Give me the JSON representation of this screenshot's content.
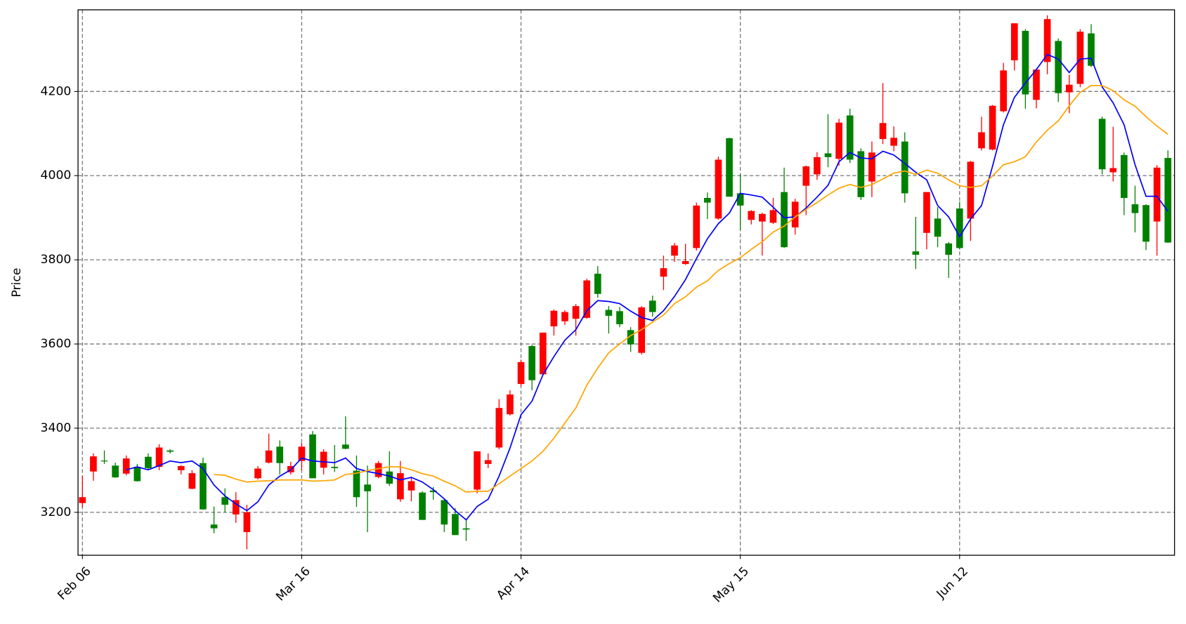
{
  "chart_data": {
    "type": "candlestick",
    "ylabel": "Price",
    "categories": [
      "Feb 06",
      null,
      null,
      null,
      null,
      null,
      null,
      null,
      null,
      null,
      null,
      null,
      null,
      null,
      null,
      null,
      null,
      null,
      null,
      null,
      "Mar 16",
      null,
      null,
      null,
      null,
      null,
      null,
      null,
      null,
      null,
      null,
      null,
      null,
      null,
      null,
      null,
      null,
      null,
      null,
      null,
      "Apr 14",
      null,
      null,
      null,
      null,
      null,
      null,
      null,
      null,
      null,
      null,
      null,
      null,
      null,
      null,
      null,
      null,
      null,
      null,
      null,
      "May 15",
      null,
      null,
      null,
      null,
      null,
      null,
      null,
      null,
      null,
      null,
      null,
      null,
      null,
      null,
      null,
      null,
      null,
      null,
      null,
      "Jun 12",
      null,
      null,
      null,
      null,
      null,
      null,
      null,
      null,
      null,
      null,
      null,
      null,
      null,
      null,
      null,
      null,
      null,
      null,
      null
    ],
    "open": [
      3222,
      3297,
      3323,
      3311,
      3292,
      3308,
      3332,
      3308,
      3347,
      3300,
      3256,
      3317,
      3171,
      3236,
      3195,
      3153,
      3281,
      3318,
      3356,
      3295,
      3322,
      3385,
      3306,
      3308,
      3361,
      3299,
      3266,
      3284,
      3297,
      3231,
      3252,
      3247,
      3252,
      3229,
      3196,
      3162,
      3254,
      3315,
      3354,
      3433,
      3505,
      3595,
      3528,
      3642,
      3654,
      3660,
      3662,
      3767,
      3681,
      3678,
      3633,
      3579,
      3703,
      3760,
      3810,
      3790,
      3828,
      3947,
      3898,
      4089,
      3958,
      3895,
      3891,
      3888,
      3961,
      3877,
      3976,
      4003,
      4053,
      4040,
      4143,
      4058,
      3986,
      4087,
      4071,
      4081,
      3820,
      3864,
      3898,
      3839,
      3922,
      3898,
      4065,
      4062,
      4153,
      4274,
      4344,
      4180,
      4270,
      4320,
      4198,
      4218,
      4338,
      4135,
      4008,
      4049,
      3932,
      3930,
      3891,
      4042
    ],
    "high": [
      3286,
      3340,
      3347,
      3318,
      3335,
      3315,
      3340,
      3362,
      3350,
      3312,
      3300,
      3330,
      3214,
      3257,
      3248,
      3218,
      3310,
      3387,
      3371,
      3320,
      3365,
      3393,
      3350,
      3360,
      3428,
      3335,
      3311,
      3322,
      3345,
      3322,
      3285,
      3250,
      3260,
      3232,
      3210,
      3182,
      3345,
      3340,
      3469,
      3490,
      3563,
      3598,
      3627,
      3682,
      3680,
      3695,
      3755,
      3785,
      3690,
      3688,
      3640,
      3690,
      3715,
      3810,
      3840,
      3838,
      3936,
      3960,
      4045,
      4090,
      4003,
      3918,
      3912,
      3947,
      4019,
      3945,
      4024,
      4056,
      4146,
      4135,
      4159,
      4065,
      4081,
      4220,
      4117,
      4103,
      3902,
      3961,
      3925,
      3842,
      3938,
      4035,
      4140,
      4168,
      4268,
      4362,
      4348,
      4255,
      4381,
      4326,
      4240,
      4348,
      4360,
      4140,
      4116,
      4055,
      3976,
      3932,
      4025,
      4060
    ],
    "low": [
      3212,
      3275,
      3315,
      3282,
      3288,
      3273,
      3300,
      3300,
      3340,
      3290,
      3255,
      3206,
      3150,
      3200,
      3175,
      3112,
      3278,
      3316,
      3290,
      3290,
      3300,
      3281,
      3290,
      3296,
      3350,
      3213,
      3153,
      3281,
      3263,
      3225,
      3226,
      3182,
      3230,
      3153,
      3146,
      3132,
      3245,
      3305,
      3350,
      3430,
      3500,
      3490,
      3525,
      3620,
      3645,
      3620,
      3660,
      3710,
      3625,
      3640,
      3581,
      3575,
      3665,
      3728,
      3795,
      3788,
      3822,
      3897,
      3895,
      3950,
      3871,
      3884,
      3810,
      3885,
      3828,
      3860,
      3906,
      3990,
      4020,
      4024,
      4030,
      3942,
      3949,
      4075,
      4058,
      3936,
      3778,
      3825,
      3830,
      3757,
      3825,
      3845,
      4060,
      4060,
      4150,
      4250,
      4159,
      4160,
      4241,
      4175,
      4148,
      4210,
      4258,
      4003,
      3986,
      3906,
      3865,
      3823,
      3810,
      3840
    ],
    "close": [
      3236,
      3333,
      3321,
      3283,
      3328,
      3274,
      3305,
      3354,
      3344,
      3310,
      3293,
      3207,
      3162,
      3218,
      3229,
      3200,
      3304,
      3347,
      3317,
      3310,
      3356,
      3281,
      3344,
      3305,
      3351,
      3236,
      3250,
      3317,
      3268,
      3293,
      3274,
      3182,
      3248,
      3171,
      3146,
      3159,
      3345,
      3324,
      3448,
      3480,
      3557,
      3514,
      3627,
      3679,
      3676,
      3690,
      3751,
      3719,
      3667,
      3647,
      3599,
      3687,
      3676,
      3780,
      3834,
      3797,
      3929,
      3936,
      4038,
      3950,
      3929,
      3916,
      3909,
      3918,
      3830,
      3938,
      4022,
      4044,
      4044,
      4126,
      4038,
      3949,
      4055,
      4125,
      4090,
      3958,
      3812,
      3961,
      3855,
      3812,
      3828,
      4033,
      4103,
      4166,
      4250,
      4362,
      4193,
      4252,
      4372,
      4196,
      4216,
      4342,
      4261,
      4015,
      4018,
      3947,
      3911,
      3843,
      4019,
      3841
    ],
    "up_color": "red",
    "down_color": "green",
    "series": [
      {
        "color": "blue",
        "values": [
          null,
          null,
          null,
          null,
          3301,
          3308,
          3301,
          3311,
          3322,
          3318,
          3322,
          3304,
          3265,
          3239,
          3220,
          3204,
          3225,
          3265,
          3286,
          3301,
          3329,
          3322,
          3320,
          3318,
          3329,
          3304,
          3297,
          3292,
          3286,
          3277,
          3283,
          3272,
          3254,
          3232,
          3204,
          3182,
          3214,
          3231,
          3286,
          3353,
          3432,
          3464,
          3527,
          3570,
          3609,
          3634,
          3679,
          3703,
          3701,
          3696,
          3678,
          3663,
          3656,
          3679,
          3713,
          3753,
          3803,
          3850,
          3886,
          3911,
          3958,
          3954,
          3949,
          3925,
          3900,
          3902,
          3923,
          3949,
          3977,
          4033,
          4055,
          4042,
          4040,
          4058,
          4049,
          4029,
          4008,
          3990,
          3929,
          3902,
          3855,
          3897,
          3929,
          4022,
          4121,
          4186,
          4220,
          4252,
          4288,
          4277,
          4245,
          4277,
          4279,
          4211,
          4173,
          4121,
          4026,
          3951,
          3951,
          3915
        ]
      },
      {
        "color": "orange",
        "values": [
          null,
          null,
          null,
          null,
          null,
          null,
          null,
          null,
          null,
          null,
          null,
          null,
          3290,
          3288,
          3279,
          3272,
          3274,
          3275,
          3277,
          3277,
          3277,
          3274,
          3275,
          3277,
          3290,
          3293,
          3299,
          3304,
          3308,
          3308,
          3301,
          3292,
          3286,
          3274,
          3263,
          3248,
          3250,
          3250,
          3268,
          3286,
          3304,
          3322,
          3345,
          3376,
          3412,
          3448,
          3502,
          3543,
          3579,
          3600,
          3620,
          3634,
          3652,
          3669,
          3696,
          3712,
          3735,
          3750,
          3775,
          3791,
          3805,
          3825,
          3843,
          3866,
          3880,
          3902,
          3920,
          3936,
          3954,
          3970,
          3979,
          3972,
          3979,
          3992,
          4006,
          4011,
          4003,
          4013,
          4006,
          3990,
          3976,
          3972,
          3976,
          3999,
          4026,
          4033,
          4045,
          4080,
          4108,
          4130,
          4166,
          4198,
          4214,
          4214,
          4202,
          4180,
          4165,
          4140,
          4118,
          4098
        ]
      }
    ],
    "xlim": [
      -0.4,
      99.6
    ],
    "ylim": [
      3098,
      4394
    ],
    "yticks": [
      3200,
      3400,
      3600,
      3800,
      4000,
      4200
    ],
    "grid": true
  }
}
